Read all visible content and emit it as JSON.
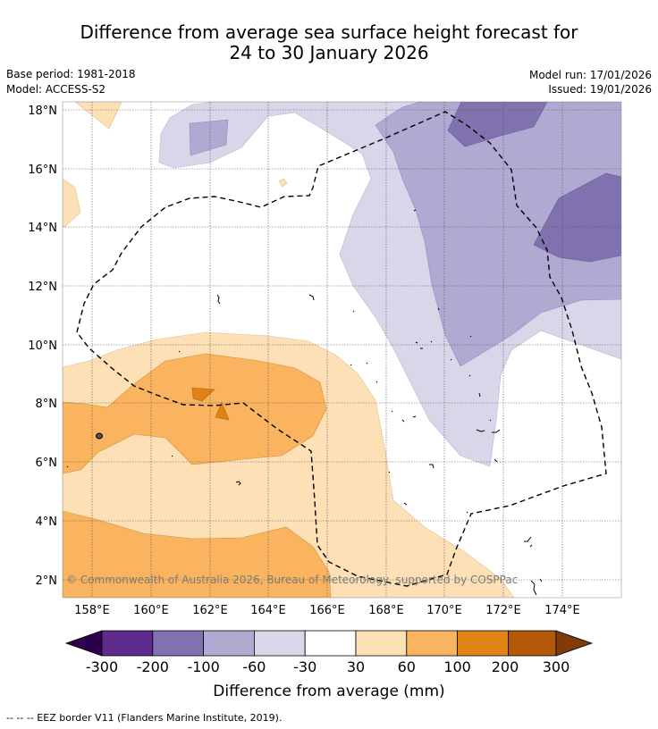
{
  "header": {
    "title_line1": "Difference from average sea surface height forecast for",
    "title_line2": "24 to 30 January 2026",
    "base_period": "Base period: 1981-2018",
    "model": "Model: ACCESS-S2",
    "model_run": "Model run: 17/01/2026",
    "issued": "Issued: 19/01/2026"
  },
  "map": {
    "lat_labels": [
      "18°N",
      "16°N",
      "14°N",
      "12°N",
      "10°N",
      "8°N",
      "6°N",
      "4°N",
      "2°N"
    ],
    "lon_labels": [
      "158°E",
      "160°E",
      "162°E",
      "164°E",
      "166°E",
      "168°E",
      "170°E",
      "172°E",
      "174°E"
    ],
    "copyright": "© Commonwealth of Australia 2026, Bureau of Meteorology, supported by COSPPac"
  },
  "colorbar": {
    "tick_labels": [
      "-300",
      "-200",
      "-100",
      "-60",
      "-30",
      "30",
      "60",
      "100",
      "200",
      "300"
    ],
    "colors": [
      "#2d004b",
      "#5e2a8c",
      "#8072ae",
      "#b0a9d2",
      "#d8d7ea",
      "#ffffff",
      "#fde0b5",
      "#fab45f",
      "#e08214",
      "#b35806",
      "#7f3b08"
    ],
    "label": "Difference from average (mm)"
  },
  "footnote": "--  --  -- EEZ border V11 (Flanders Marine Institute, 2019)."
}
